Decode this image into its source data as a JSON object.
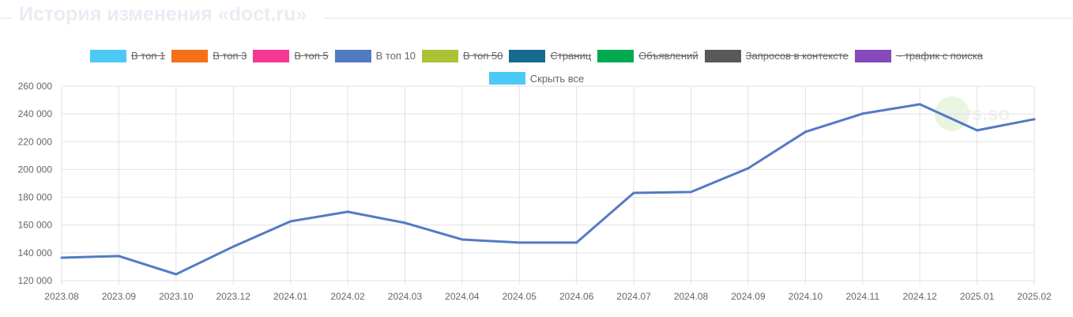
{
  "title": "История изменения «doct.ru»",
  "watermark": "keys.so",
  "legend": [
    {
      "label": "В топ 1",
      "color": "#4dc9f6",
      "hidden": true
    },
    {
      "label": "В топ 3",
      "color": "#f67019",
      "hidden": true
    },
    {
      "label": "В топ 5",
      "color": "#f53794",
      "hidden": true
    },
    {
      "label": "В топ 10",
      "color": "#537bc4",
      "hidden": false
    },
    {
      "label": "В топ 50",
      "color": "#acc236",
      "hidden": true
    },
    {
      "label": "Страниц",
      "color": "#166a8f",
      "hidden": true
    },
    {
      "label": "Объявлений",
      "color": "#00a950",
      "hidden": true
    },
    {
      "label": "Запросов в контексте",
      "color": "#58595b",
      "hidden": true
    },
    {
      "label": "~ трафик с поиска",
      "color": "#8549ba",
      "hidden": true
    },
    {
      "label": "Скрыть все",
      "color": "#4dc9f6",
      "hidden": false
    }
  ],
  "chart_data": {
    "type": "line",
    "title": "История изменения «doct.ru»",
    "categories": [
      "2023.08",
      "2023.09",
      "2023.10",
      "2023.12",
      "2024.01",
      "2024.02",
      "2024.03",
      "2024.04",
      "2024.05",
      "2024.06",
      "2024.07",
      "2024.08",
      "2024.09",
      "2024.10",
      "2024.11",
      "2024.12",
      "2025.01",
      "2025.02"
    ],
    "series": [
      {
        "name": "В топ 10",
        "color": "#537bc4",
        "values": [
          136500,
          137700,
          124600,
          144500,
          162700,
          169600,
          161600,
          149600,
          147400,
          147400,
          183200,
          183800,
          200900,
          227100,
          240200,
          247000,
          228200,
          236200
        ]
      }
    ],
    "ylim": [
      120000,
      260000
    ],
    "yticks": [
      "120 000",
      "140 000",
      "160 000",
      "180 000",
      "200 000",
      "220 000",
      "240 000",
      "260 000"
    ],
    "grid": true,
    "legend_position": "top"
  }
}
